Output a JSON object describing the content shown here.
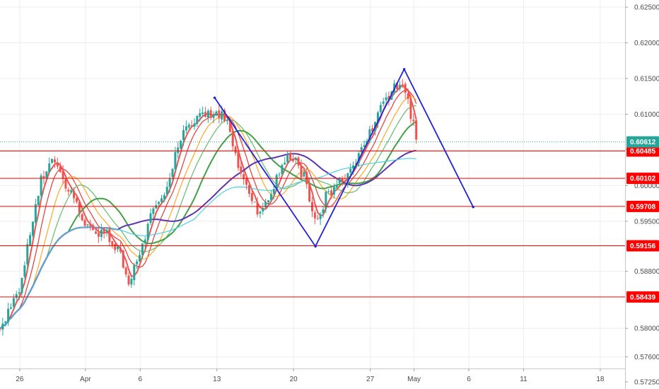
{
  "chart_data": {
    "type": "candlestick",
    "y_ticks": [
      "0.62500",
      "0.62000",
      "0.61500",
      "0.61000",
      "0.60500",
      "0.60000",
      "0.59500",
      "0.58800",
      "0.58000",
      "0.57600",
      "0.57250"
    ],
    "y_tick_values": [
      0.625,
      0.62,
      0.615,
      0.61,
      0.605,
      0.6,
      0.595,
      0.588,
      0.58,
      0.576,
      0.5725
    ],
    "ylim": [
      0.5715,
      0.626
    ],
    "x_ticks": [
      {
        "label": "26",
        "day": 0
      },
      {
        "label": "Apr",
        "day": 6
      },
      {
        "label": "6",
        "day": 11
      },
      {
        "label": "13",
        "day": 18
      },
      {
        "label": "20",
        "day": 25
      },
      {
        "label": "27",
        "day": 32
      },
      {
        "label": "May",
        "day": 36
      },
      {
        "label": "6",
        "day": 41
      },
      {
        "label": "11",
        "day": 46
      },
      {
        "label": "18",
        "day": 53
      }
    ],
    "xlim_days": [
      -1.8,
      55.2
    ],
    "current_price": "0.60612",
    "current_price_value": 0.60612,
    "horizontal_levels": [
      {
        "label": "0.60485",
        "value": 0.60485
      },
      {
        "label": "0.60102",
        "value": 0.60102
      },
      {
        "label": "0.59708",
        "value": 0.59708
      },
      {
        "label": "0.59156",
        "value": 0.59156
      },
      {
        "label": "0.58439",
        "value": 0.58439
      }
    ],
    "zigzag_pattern": [
      {
        "day": 17.8,
        "price": 0.6123
      },
      {
        "day": 27.0,
        "price": 0.5915
      },
      {
        "day": 35.1,
        "price": 0.6163
      },
      {
        "day": 41.4,
        "price": 0.597
      }
    ],
    "price_path": [
      {
        "day": -1.8,
        "price": 0.58
      },
      {
        "day": 0.0,
        "price": 0.5855
      },
      {
        "day": 1.0,
        "price": 0.5935
      },
      {
        "day": 2.0,
        "price": 0.601
      },
      {
        "day": 3.0,
        "price": 0.6035
      },
      {
        "day": 4.0,
        "price": 0.601
      },
      {
        "day": 5.0,
        "price": 0.5975
      },
      {
        "day": 6.0,
        "price": 0.595
      },
      {
        "day": 7.0,
        "price": 0.5935
      },
      {
        "day": 8.0,
        "price": 0.593
      },
      {
        "day": 9.0,
        "price": 0.591
      },
      {
        "day": 10.0,
        "price": 0.5865
      },
      {
        "day": 11.0,
        "price": 0.5905
      },
      {
        "day": 12.0,
        "price": 0.596
      },
      {
        "day": 13.0,
        "price": 0.5985
      },
      {
        "day": 14.0,
        "price": 0.603
      },
      {
        "day": 15.0,
        "price": 0.608
      },
      {
        "day": 16.0,
        "price": 0.6095
      },
      {
        "day": 17.0,
        "price": 0.61
      },
      {
        "day": 18.0,
        "price": 0.6105
      },
      {
        "day": 19.0,
        "price": 0.6085
      },
      {
        "day": 20.0,
        "price": 0.603
      },
      {
        "day": 21.0,
        "price": 0.598
      },
      {
        "day": 22.0,
        "price": 0.596
      },
      {
        "day": 23.0,
        "price": 0.599
      },
      {
        "day": 24.0,
        "price": 0.6035
      },
      {
        "day": 25.0,
        "price": 0.604
      },
      {
        "day": 26.0,
        "price": 0.601
      },
      {
        "day": 27.0,
        "price": 0.595
      },
      {
        "day": 28.0,
        "price": 0.5985
      },
      {
        "day": 29.0,
        "price": 0.6005
      },
      {
        "day": 30.0,
        "price": 0.601
      },
      {
        "day": 31.0,
        "price": 0.604
      },
      {
        "day": 32.0,
        "price": 0.6075
      },
      {
        "day": 33.0,
        "price": 0.611
      },
      {
        "day": 34.0,
        "price": 0.6135
      },
      {
        "day": 35.0,
        "price": 0.615
      },
      {
        "day": 36.0,
        "price": 0.608
      },
      {
        "day": 36.4,
        "price": 0.6061
      }
    ],
    "moving_averages": [
      {
        "color": "#ef5350",
        "period": 3
      },
      {
        "color": "#e53935",
        "period": 6
      },
      {
        "color": "#ffa726",
        "period": 10
      },
      {
        "color": "#66bb6a",
        "period": 14
      },
      {
        "color": "#43a047",
        "period": 20
      },
      {
        "color": "#5e35b1",
        "period": 34
      },
      {
        "color": "#4dd0e1",
        "period": 55
      }
    ],
    "colors": {
      "up": "#26a69a",
      "down": "#ef5350",
      "level_line": "#ff0000",
      "level_label_bg": "#ff0000",
      "current_label_bg": "#26a69a",
      "zigzag": "#2323d9",
      "grid": "#eeeeee"
    },
    "grid": true
  }
}
